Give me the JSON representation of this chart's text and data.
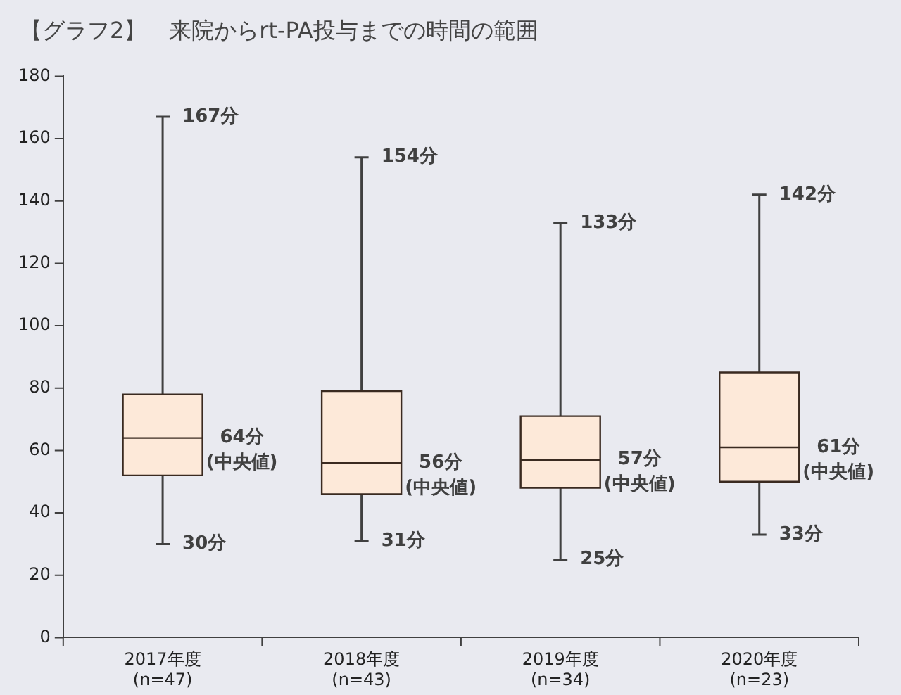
{
  "chart_data": {
    "type": "box",
    "title": "【グラフ2】　来院からrt-PA投与までの時間の範囲",
    "categories": [
      "2017年度\n(n=47)",
      "2018年度\n(n=43)",
      "2019年度\n(n=34)",
      "2020年度\n(n=23)"
    ],
    "boxes": [
      {
        "low": 30,
        "q1": 52,
        "median": 64,
        "q3": 78,
        "high": 167
      },
      {
        "low": 31,
        "q1": 46,
        "median": 56,
        "q3": 79,
        "high": 154
      },
      {
        "low": 25,
        "q1": 48,
        "median": 57,
        "q3": 71,
        "high": 133
      },
      {
        "low": 33,
        "q1": 50,
        "median": 61,
        "q3": 85,
        "high": 142
      }
    ],
    "color": "#fde9d9",
    "ylim": [
      0,
      180
    ],
    "yticks": [
      0,
      20,
      40,
      60,
      80,
      100,
      120,
      140,
      160,
      180
    ],
    "grid": false,
    "annotations": [
      {
        "text": "167分",
        "x": "2017年度\n(n=47)",
        "y": 167
      },
      {
        "text": "64分\n(中央値)",
        "x": "2017年度\n(n=47)",
        "y": 64
      },
      {
        "text": "30分",
        "x": "2017年度\n(n=47)",
        "y": 30
      },
      {
        "text": "154分",
        "x": "2018年度\n(n=43)",
        "y": 154
      },
      {
        "text": "56分\n(中央値)",
        "x": "2018年度\n(n=43)",
        "y": 56
      },
      {
        "text": "31分",
        "x": "2018年度\n(n=43)",
        "y": 31
      },
      {
        "text": "133分",
        "x": "2019年度\n(n=34)",
        "y": 133
      },
      {
        "text": "57分\n(中央値)",
        "x": "2019年度\n(n=34)",
        "y": 57
      },
      {
        "text": "25分",
        "x": "2019年度\n(n=34)",
        "y": 25
      },
      {
        "text": "142分",
        "x": "2020年度\n(n=23)",
        "y": 142
      },
      {
        "text": "61分\n(中央値)",
        "x": "2020年度\n(n=23)",
        "y": 61
      },
      {
        "text": "33分",
        "x": "2020年度\n(n=23)",
        "y": 33
      }
    ]
  }
}
